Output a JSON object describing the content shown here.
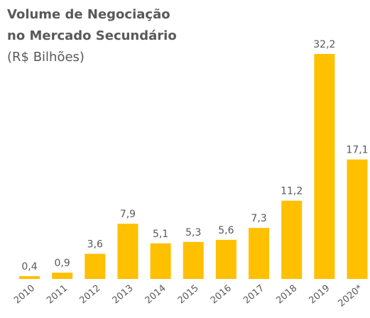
{
  "chart_data": {
    "type": "bar",
    "title": [
      "Volume de Negociação",
      "no Mercado Secundário"
    ],
    "subtitle": "(R$ Bilhões)",
    "categories": [
      "2010",
      "2011",
      "2012",
      "2013",
      "2014",
      "2015",
      "2016",
      "2017",
      "2018",
      "2019",
      "2020*"
    ],
    "values": [
      0.4,
      0.9,
      3.6,
      7.9,
      5.1,
      5.3,
      5.6,
      7.3,
      11.2,
      32.2,
      17.1
    ],
    "value_labels": [
      "0,4",
      "0,9",
      "3,6",
      "7,9",
      "5,1",
      "5,3",
      "5,6",
      "7,3",
      "11,2",
      "32,2",
      "17,1"
    ],
    "color": "#ffc000"
  }
}
